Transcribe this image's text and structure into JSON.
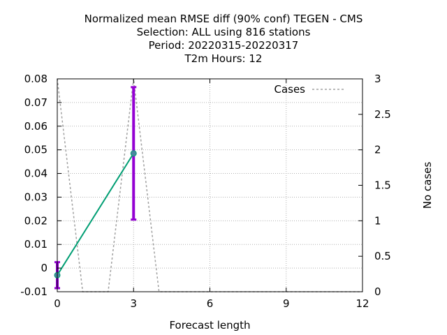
{
  "chart_data": {
    "type": "line",
    "title_lines": [
      "Normalized mean RMSE diff (90% conf) TEGEN - CMS",
      "Selection: ALL using   816 stations",
      "Period: 20220315-20220317",
      "T2m   Hours:  12"
    ],
    "xlabel": "Forecast length",
    "ylabel": "",
    "y2label": "No cases",
    "xlim": [
      0,
      12
    ],
    "ylim": [
      -0.01,
      0.08
    ],
    "y2lim": [
      0,
      3
    ],
    "x_ticks": [
      0,
      3,
      6,
      9,
      12
    ],
    "y_ticks": [
      "-0.01",
      "0",
      "0.01",
      "0.02",
      "0.03",
      "0.04",
      "0.05",
      "0.06",
      "0.07",
      "0.08"
    ],
    "y2_ticks": [
      "0",
      "0.5",
      "1",
      "1.5",
      "2",
      "2.5",
      "3"
    ],
    "grid": true,
    "legend_position": "top-right",
    "series": [
      {
        "name": "",
        "kind": "line-errorbars",
        "color": "#009e73",
        "errorbar_color": "#9400d3",
        "marker_color": "#4a86a0",
        "x": [
          0,
          3
        ],
        "y": [
          -0.003,
          0.0485
        ],
        "y_low": [
          -0.0085,
          0.0205
        ],
        "y_high": [
          0.0025,
          0.0765
        ]
      },
      {
        "name": "Cases",
        "kind": "dashed-line",
        "axis": "y2",
        "color": "#a0a0a0",
        "x": [
          0,
          1,
          2,
          3,
          4,
          5,
          6,
          7,
          8,
          9,
          10,
          11,
          12
        ],
        "y": [
          3,
          0,
          0,
          3,
          0,
          0,
          0,
          0,
          0,
          0,
          0,
          0,
          0
        ]
      }
    ]
  }
}
